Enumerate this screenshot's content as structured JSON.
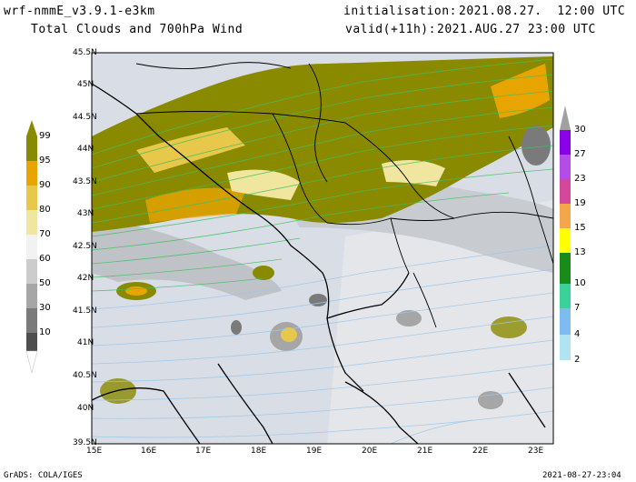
{
  "header": {
    "model": "wrf-nmmE_v3.9.1-e3km",
    "product": "Total Clouds and 700hPa Wind",
    "init_label": "initialisation:",
    "init_value": "2021.08.27.  12:00 UTC",
    "valid_label": "valid(+11h):",
    "valid_value": "2021.AUG.27 23:00 UTC"
  },
  "footer": {
    "left": "GrADS: COLA/IGES",
    "right": "2021-08-27-23:04"
  },
  "axes": {
    "lat_labels": [
      "45.5N",
      "45N",
      "44.5N",
      "44N",
      "43.5N",
      "43N",
      "42.5N",
      "42N",
      "41.5N",
      "41N",
      "40.5N",
      "40N",
      "39.5N"
    ],
    "lon_labels": [
      "15E",
      "16E",
      "17E",
      "18E",
      "19E",
      "20E",
      "21E",
      "22E",
      "23E"
    ]
  },
  "colorbar_clouds": {
    "labels": [
      "99",
      "95",
      "90",
      "80",
      "70",
      "60",
      "50",
      "30",
      "10"
    ],
    "colors": [
      "#8a8a00",
      "#e8a400",
      "#e8c84a",
      "#f0e6a0",
      "#f2f2f2",
      "#cccccc",
      "#a6a6a6",
      "#7a7a7a",
      "#4e4e4e"
    ]
  },
  "colorbar_wind": {
    "labels": [
      "30",
      "27",
      "23",
      "19",
      "15",
      "13",
      "10",
      "7",
      "4",
      "2"
    ],
    "colors": [
      "#8a00e6",
      "#b44de6",
      "#d4489a",
      "#f5a64a",
      "#ffff00",
      "#1a8a1a",
      "#3ad29a",
      "#7dbbf0",
      "#b0e4f2"
    ]
  },
  "colors": {
    "sea": "#d8dde6",
    "cloud_dense": "#8a8a00",
    "streamline_green": "#40c060",
    "streamline_blue": "#9cc8ec",
    "coast": "#000000"
  }
}
